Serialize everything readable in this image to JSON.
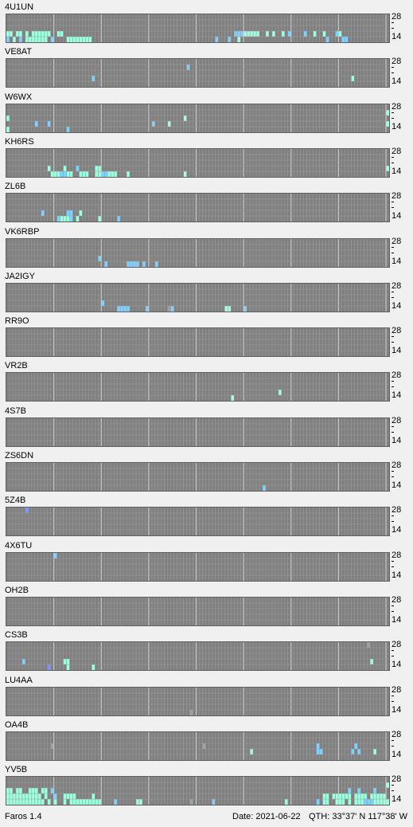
{
  "band_labels": {
    "top": "28",
    "bottom": "14"
  },
  "colors": {
    "grid_bg": "#808080",
    "grid_line": "#9c9c9c",
    "major_line": "#c8c8c8",
    "strong": "#9fffdf",
    "medium": "#80d0ff",
    "weak": "#8090ff",
    "gray": "#a0a0a0"
  },
  "beacons": [
    {
      "call": "4U1UN",
      "cells": [
        [
          0,
          3,
          "s"
        ],
        [
          1,
          3,
          "s"
        ],
        [
          3,
          3,
          "s"
        ],
        [
          4,
          3,
          "s"
        ],
        [
          6,
          3,
          "s"
        ],
        [
          8,
          3,
          "s"
        ],
        [
          9,
          3,
          "s"
        ],
        [
          10,
          3,
          "s"
        ],
        [
          11,
          3,
          "s"
        ],
        [
          12,
          3,
          "s"
        ],
        [
          13,
          3,
          "s"
        ],
        [
          16,
          3,
          "s"
        ],
        [
          17,
          3,
          "s"
        ],
        [
          0,
          4,
          "m"
        ],
        [
          2,
          4,
          "s"
        ],
        [
          4,
          4,
          "m"
        ],
        [
          6,
          4,
          "s"
        ],
        [
          7,
          4,
          "s"
        ],
        [
          8,
          4,
          "s"
        ],
        [
          9,
          4,
          "s"
        ],
        [
          10,
          4,
          "s"
        ],
        [
          11,
          4,
          "s"
        ],
        [
          12,
          4,
          "s"
        ],
        [
          14,
          4,
          "m"
        ],
        [
          19,
          4,
          "s"
        ],
        [
          20,
          4,
          "s"
        ],
        [
          21,
          4,
          "s"
        ],
        [
          22,
          4,
          "s"
        ],
        [
          23,
          4,
          "s"
        ],
        [
          24,
          4,
          "s"
        ],
        [
          25,
          4,
          "s"
        ],
        [
          26,
          4,
          "s"
        ],
        [
          72,
          3,
          "m"
        ],
        [
          73,
          3,
          "m"
        ],
        [
          74,
          3,
          "m"
        ],
        [
          75,
          3,
          "s"
        ],
        [
          76,
          3,
          "s"
        ],
        [
          77,
          3,
          "s"
        ],
        [
          78,
          3,
          "s"
        ],
        [
          79,
          3,
          "s"
        ],
        [
          82,
          3,
          "s"
        ],
        [
          84,
          3,
          "s"
        ],
        [
          87,
          3,
          "s"
        ],
        [
          89,
          3,
          "m"
        ],
        [
          94,
          3,
          "m"
        ],
        [
          97,
          3,
          "s"
        ],
        [
          100,
          3,
          "s"
        ],
        [
          104,
          3,
          "m"
        ],
        [
          105,
          3,
          "s"
        ],
        [
          66,
          4,
          "m"
        ],
        [
          70,
          4,
          "m"
        ],
        [
          73,
          4,
          "s"
        ],
        [
          101,
          4,
          "m"
        ],
        [
          106,
          4,
          "m"
        ],
        [
          107,
          4,
          "m"
        ]
      ]
    },
    {
      "call": "VE8AT",
      "cells": [
        [
          57,
          1,
          "m"
        ],
        [
          27,
          3,
          "m"
        ],
        [
          109,
          3,
          "s"
        ]
      ]
    },
    {
      "call": "W6WX",
      "cells": [
        [
          0,
          2,
          "s"
        ],
        [
          56,
          2,
          "s"
        ],
        [
          120,
          1,
          "s"
        ],
        [
          9,
          3,
          "m"
        ],
        [
          13,
          3,
          "m"
        ],
        [
          46,
          3,
          "m"
        ],
        [
          51,
          3,
          "s"
        ],
        [
          0,
          4,
          "s"
        ],
        [
          19,
          4,
          "m"
        ],
        [
          120,
          3,
          "s"
        ]
      ]
    },
    {
      "call": "KH6RS",
      "cells": [
        [
          13,
          3,
          "s"
        ],
        [
          18,
          3,
          "s"
        ],
        [
          22,
          3,
          "m"
        ],
        [
          28,
          3,
          "s"
        ],
        [
          29,
          3,
          "s"
        ],
        [
          14,
          4,
          "s"
        ],
        [
          15,
          4,
          "s"
        ],
        [
          16,
          4,
          "s"
        ],
        [
          17,
          4,
          "m"
        ],
        [
          18,
          4,
          "m"
        ],
        [
          19,
          4,
          "s"
        ],
        [
          20,
          4,
          "s"
        ],
        [
          23,
          4,
          "s"
        ],
        [
          24,
          4,
          "s"
        ],
        [
          25,
          4,
          "s"
        ],
        [
          28,
          4,
          "s"
        ],
        [
          29,
          4,
          "s"
        ],
        [
          30,
          4,
          "m"
        ],
        [
          31,
          4,
          "m"
        ],
        [
          32,
          4,
          "s"
        ],
        [
          33,
          4,
          "s"
        ],
        [
          34,
          4,
          "s"
        ],
        [
          38,
          4,
          "s"
        ],
        [
          56,
          4,
          "s"
        ],
        [
          120,
          3,
          "s"
        ]
      ]
    },
    {
      "call": "ZL6B",
      "cells": [
        [
          11,
          3,
          "m"
        ],
        [
          19,
          3,
          "m"
        ],
        [
          20,
          3,
          "m"
        ],
        [
          23,
          3,
          "s"
        ],
        [
          16,
          4,
          "m"
        ],
        [
          17,
          4,
          "s"
        ],
        [
          18,
          4,
          "s"
        ],
        [
          19,
          4,
          "s"
        ],
        [
          20,
          4,
          "m"
        ],
        [
          22,
          4,
          "s"
        ],
        [
          29,
          4,
          "s"
        ],
        [
          35,
          4,
          "m"
        ]
      ]
    },
    {
      "call": "VK6RBP",
      "cells": [
        [
          29,
          3,
          "m"
        ],
        [
          31,
          4,
          "m"
        ],
        [
          38,
          4,
          "m"
        ],
        [
          39,
          4,
          "m"
        ],
        [
          40,
          4,
          "m"
        ],
        [
          41,
          4,
          "m"
        ],
        [
          43,
          4,
          "m"
        ],
        [
          47,
          4,
          "m"
        ]
      ]
    },
    {
      "call": "JA2IGY",
      "cells": [
        [
          30,
          3,
          "m"
        ],
        [
          35,
          4,
          "m"
        ],
        [
          36,
          4,
          "m"
        ],
        [
          37,
          4,
          "m"
        ],
        [
          38,
          4,
          "m"
        ],
        [
          44,
          4,
          "m"
        ],
        [
          51,
          4,
          "gray"
        ],
        [
          52,
          4,
          "m"
        ],
        [
          69,
          4,
          "s"
        ],
        [
          70,
          4,
          "s"
        ],
        [
          75,
          4,
          "m"
        ]
      ]
    },
    {
      "call": "RR9O",
      "cells": []
    },
    {
      "call": "VR2B",
      "cells": [
        [
          86,
          3,
          "s"
        ],
        [
          71,
          4,
          "s"
        ]
      ]
    },
    {
      "call": "4S7B",
      "cells": []
    },
    {
      "call": "ZS6DN",
      "cells": [
        [
          81,
          4,
          "m"
        ]
      ]
    },
    {
      "call": "5Z4B",
      "cells": [
        [
          6,
          0,
          "w"
        ]
      ]
    },
    {
      "call": "4X6TU",
      "cells": [
        [
          15,
          0,
          "m"
        ]
      ]
    },
    {
      "call": "OH2B",
      "cells": []
    },
    {
      "call": "CS3B",
      "cells": [
        [
          114,
          0,
          "gray"
        ],
        [
          5,
          3,
          "m"
        ],
        [
          18,
          3,
          "s"
        ],
        [
          19,
          3,
          "s"
        ],
        [
          115,
          3,
          "s"
        ],
        [
          13,
          4,
          "w"
        ],
        [
          19,
          4,
          "s"
        ],
        [
          27,
          4,
          "s"
        ]
      ]
    },
    {
      "call": "LU4AA",
      "cells": [
        [
          58,
          4,
          "gray"
        ]
      ]
    },
    {
      "call": "OA4B",
      "cells": [
        [
          14,
          2,
          "gray"
        ],
        [
          62,
          2,
          "gray"
        ],
        [
          98,
          2,
          "m"
        ],
        [
          110,
          2,
          "m"
        ],
        [
          77,
          3,
          "s"
        ],
        [
          98,
          3,
          "m"
        ],
        [
          99,
          3,
          "m"
        ],
        [
          109,
          3,
          "m"
        ],
        [
          111,
          3,
          "m"
        ],
        [
          116,
          3,
          "s"
        ]
      ]
    },
    {
      "call": "YV5B",
      "cells": [
        [
          120,
          1,
          "s"
        ],
        [
          0,
          2,
          "s"
        ],
        [
          1,
          2,
          "s"
        ],
        [
          3,
          2,
          "s"
        ],
        [
          4,
          2,
          "s"
        ],
        [
          7,
          2,
          "s"
        ],
        [
          8,
          2,
          "s"
        ],
        [
          9,
          2,
          "s"
        ],
        [
          11,
          2,
          "s"
        ],
        [
          12,
          2,
          "s"
        ],
        [
          14,
          2,
          "m"
        ],
        [
          111,
          2,
          "m"
        ],
        [
          116,
          2,
          "m"
        ],
        [
          108,
          2,
          "m"
        ],
        [
          0,
          3,
          "s"
        ],
        [
          1,
          3,
          "s"
        ],
        [
          2,
          3,
          "s"
        ],
        [
          3,
          3,
          "s"
        ],
        [
          4,
          3,
          "s"
        ],
        [
          5,
          3,
          "s"
        ],
        [
          6,
          3,
          "s"
        ],
        [
          7,
          3,
          "s"
        ],
        [
          8,
          3,
          "s"
        ],
        [
          9,
          3,
          "s"
        ],
        [
          10,
          3,
          "s"
        ],
        [
          12,
          3,
          "s"
        ],
        [
          15,
          3,
          "m"
        ],
        [
          18,
          3,
          "s"
        ],
        [
          19,
          3,
          "s"
        ],
        [
          20,
          3,
          "s"
        ],
        [
          21,
          3,
          "s"
        ],
        [
          27,
          3,
          "s"
        ],
        [
          100,
          3,
          "s"
        ],
        [
          101,
          3,
          "s"
        ],
        [
          103,
          3,
          "s"
        ],
        [
          104,
          3,
          "s"
        ],
        [
          105,
          3,
          "s"
        ],
        [
          106,
          3,
          "s"
        ],
        [
          107,
          3,
          "s"
        ],
        [
          108,
          3,
          "s"
        ],
        [
          110,
          3,
          "s"
        ],
        [
          111,
          3,
          "s"
        ],
        [
          112,
          3,
          "s"
        ],
        [
          113,
          3,
          "s"
        ],
        [
          115,
          3,
          "s"
        ],
        [
          116,
          3,
          "s"
        ],
        [
          117,
          3,
          "s"
        ],
        [
          118,
          3,
          "s"
        ],
        [
          119,
          3,
          "s"
        ],
        [
          0,
          4,
          "s"
        ],
        [
          1,
          4,
          "s"
        ],
        [
          2,
          4,
          "s"
        ],
        [
          3,
          4,
          "s"
        ],
        [
          4,
          4,
          "s"
        ],
        [
          5,
          4,
          "s"
        ],
        [
          6,
          4,
          "s"
        ],
        [
          7,
          4,
          "s"
        ],
        [
          8,
          4,
          "s"
        ],
        [
          9,
          4,
          "s"
        ],
        [
          10,
          4,
          "s"
        ],
        [
          11,
          4,
          "s"
        ],
        [
          13,
          4,
          "s"
        ],
        [
          15,
          4,
          "s"
        ],
        [
          18,
          4,
          "s"
        ],
        [
          20,
          4,
          "s"
        ],
        [
          21,
          4,
          "s"
        ],
        [
          22,
          4,
          "s"
        ],
        [
          23,
          4,
          "s"
        ],
        [
          24,
          4,
          "s"
        ],
        [
          25,
          4,
          "s"
        ],
        [
          26,
          4,
          "s"
        ],
        [
          27,
          4,
          "s"
        ],
        [
          28,
          4,
          "s"
        ],
        [
          29,
          4,
          "s"
        ],
        [
          34,
          4,
          "m"
        ],
        [
          41,
          4,
          "s"
        ],
        [
          42,
          4,
          "s"
        ],
        [
          58,
          4,
          "gray"
        ],
        [
          65,
          4,
          "m"
        ],
        [
          88,
          4,
          "s"
        ],
        [
          98,
          4,
          "m"
        ],
        [
          100,
          4,
          "s"
        ],
        [
          101,
          4,
          "s"
        ],
        [
          104,
          4,
          "s"
        ],
        [
          105,
          4,
          "s"
        ],
        [
          106,
          4,
          "s"
        ],
        [
          108,
          4,
          "s"
        ],
        [
          110,
          4,
          "s"
        ],
        [
          111,
          4,
          "s"
        ],
        [
          112,
          4,
          "s"
        ],
        [
          113,
          4,
          "m"
        ],
        [
          114,
          4,
          "m"
        ],
        [
          115,
          4,
          "m"
        ],
        [
          116,
          4,
          "s"
        ],
        [
          117,
          4,
          "s"
        ],
        [
          118,
          4,
          "s"
        ],
        [
          119,
          4,
          "s"
        ],
        [
          120,
          4,
          "s"
        ]
      ]
    }
  ],
  "footer": {
    "app": "Faros 1.4",
    "date": "Date: 2021-06-22",
    "qth": "QTH: 33°37' N  117°38' W"
  }
}
